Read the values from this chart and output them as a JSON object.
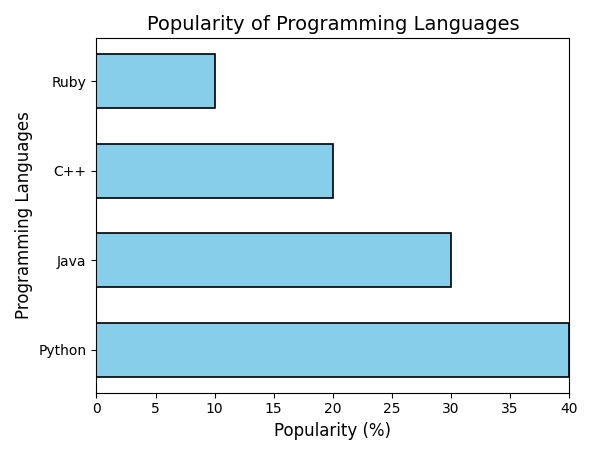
{
  "languages": [
    "Python",
    "Java",
    "C++",
    "Ruby"
  ],
  "values": [
    40,
    30,
    20,
    10
  ],
  "bar_color": "#87CEEB",
  "bar_edgecolor": "#000000",
  "title": "Popularity of Programming Languages",
  "xlabel": "Popularity (%)",
  "ylabel": "Programming Languages",
  "xlim": [
    0,
    40
  ],
  "xticks": [
    0,
    5,
    10,
    15,
    20,
    25,
    30,
    35,
    40
  ],
  "title_fontsize": 14,
  "axis_label_fontsize": 12,
  "tick_fontsize": 10,
  "bar_linewidth": 1.2,
  "bar_height": 0.6
}
